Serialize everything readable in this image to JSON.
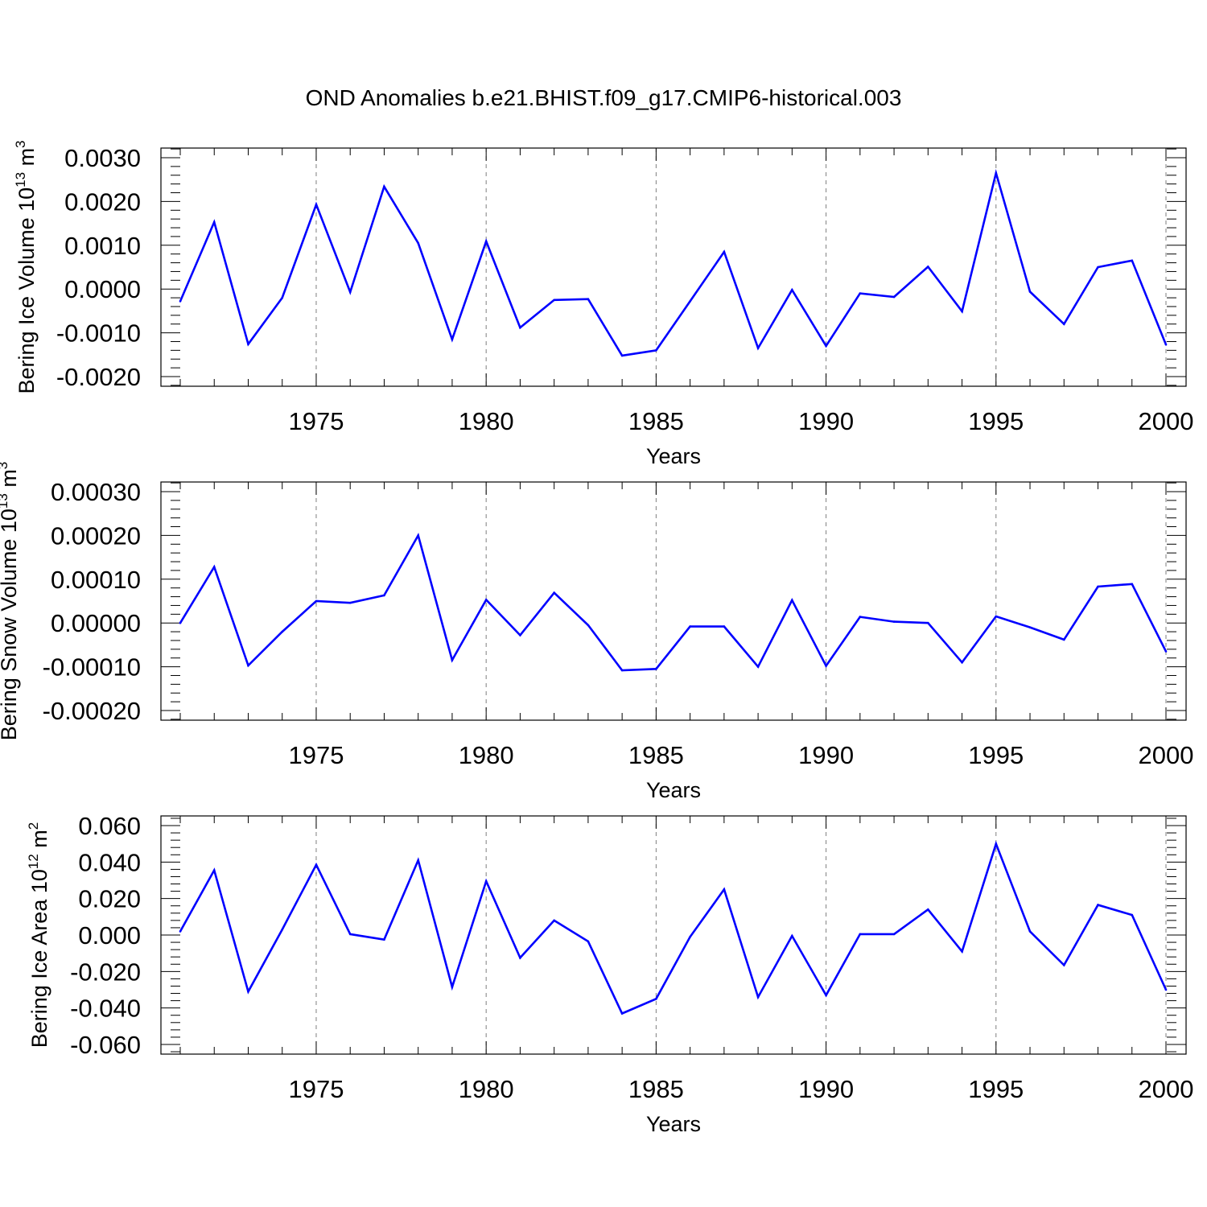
{
  "title": "OND Anomalies b.e21.BHIST.f09_g17.CMIP6-historical.003",
  "line_color": "#0000ff",
  "grid_color": "#7f7f7f",
  "chart_data": [
    {
      "type": "line",
      "name": "ice-volume",
      "ylabel": {
        "text": "Bering Ice Volume 10",
        "sup1": "13",
        "text2": " m",
        "sup2": "3"
      },
      "xlabel": "Years",
      "xlim": [
        1971,
        2000
      ],
      "ylim": [
        -0.002,
        0.003
      ],
      "grid": "vertical dashed at major x ticks",
      "yticks": [
        -0.002,
        -0.001,
        0.0,
        0.001,
        0.002,
        0.003
      ],
      "ytick_labels": [
        "-0.0020",
        "-0.0010",
        "0.0000",
        "0.0010",
        "0.0020",
        "0.0030"
      ],
      "xticks": [
        1975,
        1980,
        1985,
        1990,
        1995,
        2000
      ],
      "xtick_labels": [
        "1975",
        "1980",
        "1985",
        "1990",
        "1995",
        "2000"
      ],
      "x": [
        1971,
        1972,
        1973,
        1974,
        1975,
        1976,
        1977,
        1978,
        1979,
        1980,
        1981,
        1982,
        1983,
        1984,
        1985,
        1986,
        1987,
        1988,
        1989,
        1990,
        1991,
        1992,
        1993,
        1994,
        1995,
        1996,
        1997,
        1998,
        1999,
        2000
      ],
      "values": [
        -0.00028,
        0.00153,
        -0.00126,
        -0.0002,
        0.00193,
        -7e-05,
        0.00234,
        0.00105,
        -0.00115,
        0.00109,
        -0.00088,
        -0.00025,
        -0.00023,
        -0.00152,
        -0.0014,
        -0.00028,
        0.00085,
        -0.00135,
        -2e-05,
        -0.0013,
        -0.0001,
        -0.00018,
        0.00051,
        -0.00051,
        0.00265,
        -6e-05,
        -0.0008,
        0.0005,
        0.00065,
        -0.00127
      ]
    },
    {
      "type": "line",
      "name": "snow-volume",
      "ylabel": {
        "text": "Bering Snow Volume 10",
        "sup1": "13",
        "text2": " m",
        "sup2": "3"
      },
      "xlabel": "Years",
      "xlim": [
        1971,
        2000
      ],
      "ylim": [
        -0.0002,
        0.0003
      ],
      "grid": "vertical dashed at major x ticks",
      "yticks": [
        -0.0002,
        -0.0001,
        0.0,
        0.0001,
        0.0002,
        0.0003
      ],
      "ytick_labels": [
        "-0.00020",
        "-0.00010",
        "0.00000",
        "0.00010",
        "0.00020",
        "0.00030"
      ],
      "xticks": [
        1975,
        1980,
        1985,
        1990,
        1995,
        2000
      ],
      "xtick_labels": [
        "1975",
        "1980",
        "1985",
        "1990",
        "1995",
        "2000"
      ],
      "x": [
        1971,
        1972,
        1973,
        1974,
        1975,
        1976,
        1977,
        1978,
        1979,
        1980,
        1981,
        1982,
        1983,
        1984,
        1985,
        1986,
        1987,
        1988,
        1989,
        1990,
        1991,
        1992,
        1993,
        1994,
        1995,
        1996,
        1997,
        1998,
        1999,
        2000
      ],
      "values": [
        0.0,
        0.000128,
        -9.7e-05,
        -2e-05,
        5e-05,
        4.6e-05,
        6.3e-05,
        0.0002,
        -8.5e-05,
        5.3e-05,
        -2.8e-05,
        6.9e-05,
        -5e-06,
        -0.000108,
        -0.000105,
        -8e-06,
        -8e-06,
        -0.0001,
        5.2e-05,
        -9.8e-05,
        1.4e-05,
        3e-06,
        0.0,
        -9e-05,
        1.5e-05,
        -1e-05,
        -3.8e-05,
        8.3e-05,
        8.9e-05,
        -6.5e-05
      ]
    },
    {
      "type": "line",
      "name": "ice-area",
      "ylabel": {
        "text": "Bering Ice Area 10",
        "sup1": "12",
        "text2": " m",
        "sup2": "2"
      },
      "xlabel": "Years",
      "xlim": [
        1971,
        2000
      ],
      "ylim": [
        -0.06,
        0.06
      ],
      "grid": "vertical dashed at major x ticks",
      "yticks": [
        -0.06,
        -0.04,
        -0.02,
        0.0,
        0.02,
        0.04,
        0.06
      ],
      "ytick_labels": [
        "-0.060",
        "-0.040",
        "-0.020",
        "0.000",
        "0.020",
        "0.040",
        "0.060"
      ],
      "xticks": [
        1975,
        1980,
        1985,
        1990,
        1995,
        2000
      ],
      "xtick_labels": [
        "1975",
        "1980",
        "1985",
        "1990",
        "1995",
        "2000"
      ],
      "x": [
        1971,
        1972,
        1973,
        1974,
        1975,
        1976,
        1977,
        1978,
        1979,
        1980,
        1981,
        1982,
        1983,
        1984,
        1985,
        1986,
        1987,
        1988,
        1989,
        1990,
        1991,
        1992,
        1993,
        1994,
        1995,
        1996,
        1997,
        1998,
        1999,
        2000
      ],
      "values": [
        0.002,
        0.0355,
        -0.031,
        0.003,
        0.0385,
        0.0005,
        -0.0025,
        0.041,
        -0.0285,
        0.0295,
        -0.0125,
        0.008,
        -0.0035,
        -0.043,
        -0.035,
        -0.001,
        0.025,
        -0.034,
        -0.0005,
        -0.033,
        0.0005,
        0.0005,
        0.014,
        -0.009,
        0.05,
        0.002,
        -0.0165,
        0.0165,
        0.011,
        -0.03
      ]
    }
  ]
}
